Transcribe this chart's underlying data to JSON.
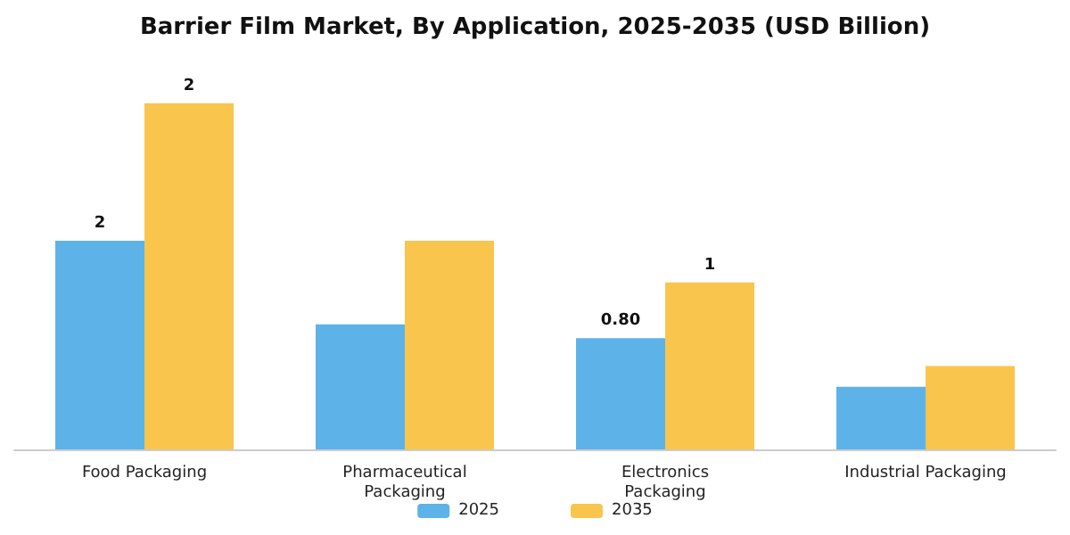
{
  "chart_data": {
    "type": "bar",
    "title": "Barrier Film Market, By Application, 2025-2035 (USD Billion)",
    "categories": [
      "Food Packaging",
      "Pharmaceutical\nPackaging",
      "Electronics\nPackaging",
      "Industrial Packaging"
    ],
    "legend": "bottom",
    "series": [
      {
        "name": "2025",
        "color": "#5db3e8",
        "values": [
          1.5,
          0.9,
          0.8,
          0.45
        ],
        "value_labels": [
          "2",
          null,
          "0.80",
          null
        ]
      },
      {
        "name": "2035",
        "color": "#f9c54c",
        "values": [
          2.49,
          1.5,
          1.2,
          0.6
        ],
        "value_labels": [
          "2",
          null,
          "1",
          null
        ]
      }
    ]
  }
}
